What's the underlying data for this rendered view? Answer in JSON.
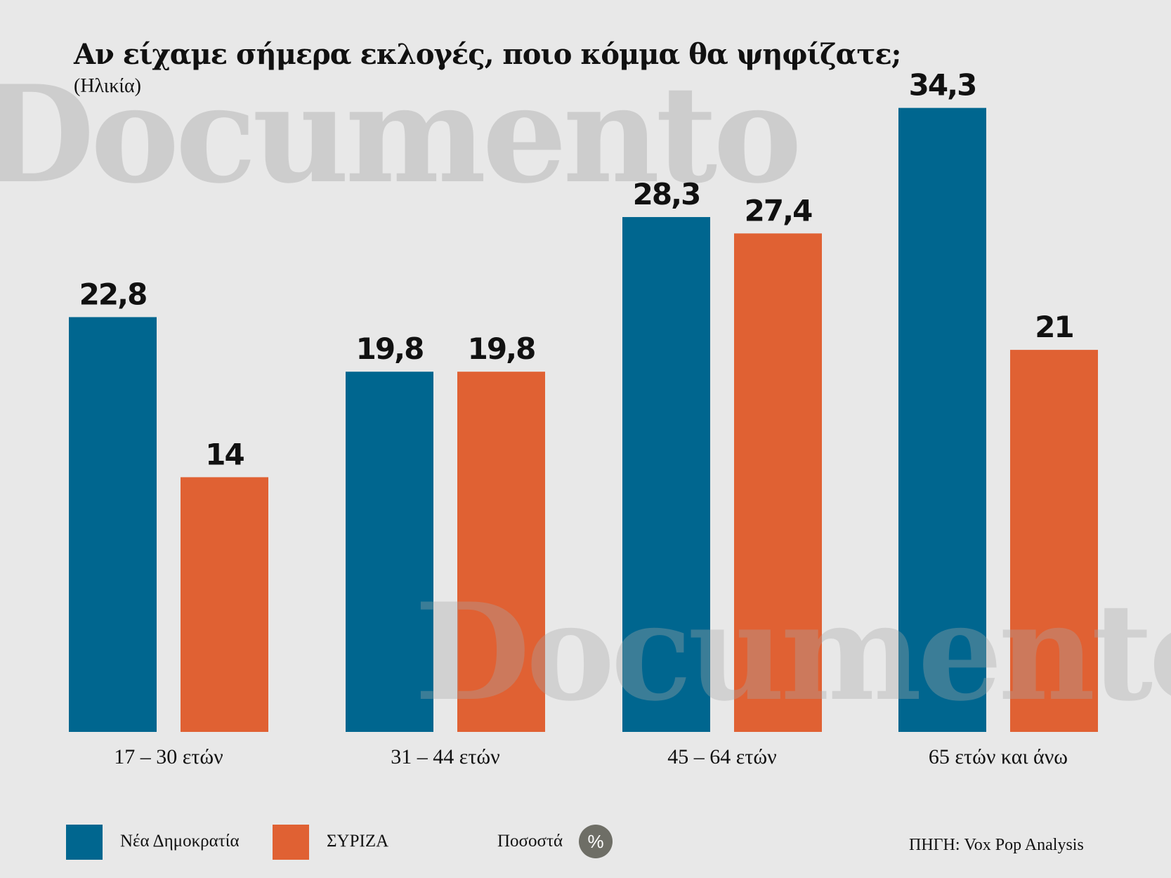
{
  "watermark": "Documento",
  "legend_colors": {
    "nd": "#00668f",
    "syriza": "#e06133",
    "badge": "#6e6e66"
  },
  "unit": {
    "label": "Ποσοστά",
    "symbol": "%"
  },
  "source": "ΠΗΓΗ: Vox Pop Analysis",
  "chart_data": {
    "type": "bar",
    "title": "Αν είχαμε σήμερα εκλογές, ποιο κόμμα θα ψηφίζατε;",
    "subtitle": "(Ηλικία)",
    "categories": [
      "17 – 30 ετών",
      "31 – 44 ετών",
      "45 – 64 ετών",
      "65 ετών και άνω"
    ],
    "series": [
      {
        "name": "Νέα Δημοκρατία",
        "color": "#00668f",
        "values": [
          22.8,
          19.8,
          28.3,
          34.3
        ],
        "labels": [
          "22,8",
          "19,8",
          "28,3",
          "34,3"
        ]
      },
      {
        "name": "ΣΥΡΙΖΑ",
        "color": "#e06133",
        "values": [
          14,
          19.8,
          27.4,
          21
        ],
        "labels": [
          "14",
          "19,8",
          "27,4",
          "21"
        ]
      }
    ],
    "ylim": [
      0,
      40
    ],
    "grid": false,
    "legend": "bottom-left"
  }
}
